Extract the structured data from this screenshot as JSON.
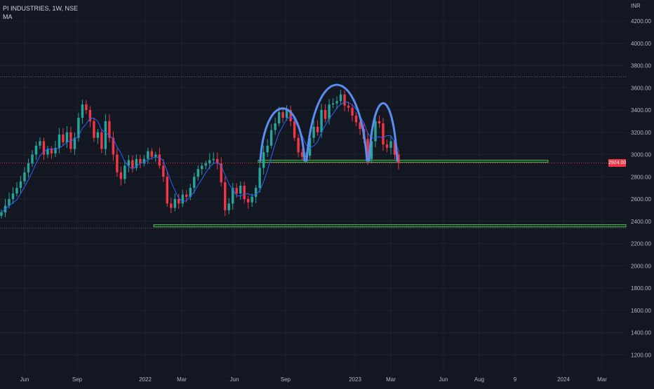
{
  "header": {
    "symbol_line": "PI INDUSTRIES, 1W, NSE",
    "indicator": "MA"
  },
  "price_axis": {
    "currency": "INR",
    "last_price_tag": "2924.00"
  },
  "colors": {
    "background": "#131722",
    "grid": "#1e222d",
    "axis_text": "#b2b5be",
    "up_candle": "#26a69a",
    "down_candle": "#f23645",
    "ma_line": "#2962ff",
    "pattern_arcs": "#5b8def",
    "support_zone": "#4caf50",
    "last_price_line": "#f23645"
  },
  "chart_data": {
    "type": "candlestick",
    "interval": "1W",
    "ylim": [
      1100,
      4400
    ],
    "y_ticks": [
      1200,
      1400,
      1600,
      1800,
      2000,
      2200,
      2400,
      2600,
      2800,
      3000,
      3200,
      3400,
      3600,
      3800,
      4000,
      4200
    ],
    "y_tick_labels": [
      "1200.00",
      "1400.00",
      "1600.00",
      "1800.00",
      "2000.00",
      "2200.00",
      "2400.00",
      "2600.00",
      "2800.00",
      "3000.00",
      "3200.00",
      "3400.00",
      "3600.00",
      "3800.00",
      "4000.00",
      "4200.00"
    ],
    "x_tick_labels": [
      "Jun",
      "Sep",
      "2022",
      "Mar",
      "Jun",
      "Sep",
      "2023",
      "Mar",
      "Jun",
      "Aug",
      "9",
      "2024",
      "Mar"
    ],
    "last_price": 2924,
    "ma_series_name": "MA",
    "closes": [
      2480,
      2540,
      2600,
      2650,
      2700,
      2760,
      2840,
      2920,
      3000,
      3080,
      3120,
      3000,
      3050,
      3010,
      3060,
      3180,
      3110,
      3200,
      3050,
      3150,
      3330,
      3450,
      3400,
      3300,
      3150,
      3200,
      3050,
      3300,
      3150,
      3000,
      2840,
      2780,
      2900,
      2950,
      2880,
      2960,
      2920,
      2960,
      3030,
      2980,
      3000,
      2900,
      2800,
      2560,
      2520,
      2600,
      2560,
      2640,
      2620,
      2700,
      2800,
      2870,
      2900,
      2920,
      2950,
      2960,
      2920,
      2750,
      2500,
      2560,
      2700,
      2650,
      2720,
      2600,
      2570,
      2620,
      2700,
      2880,
      3020,
      3080,
      3220,
      3280,
      3380,
      3330,
      3400,
      3300,
      3150,
      3020,
      2980,
      2990,
      3150,
      3250,
      3200,
      3400,
      3320,
      3450,
      3460,
      3480,
      3540,
      3440,
      3420,
      3350,
      3290,
      3230,
      3140,
      2960,
      3120,
      3300,
      3280,
      3090,
      3060,
      3120,
      3000,
      2924
    ]
  }
}
